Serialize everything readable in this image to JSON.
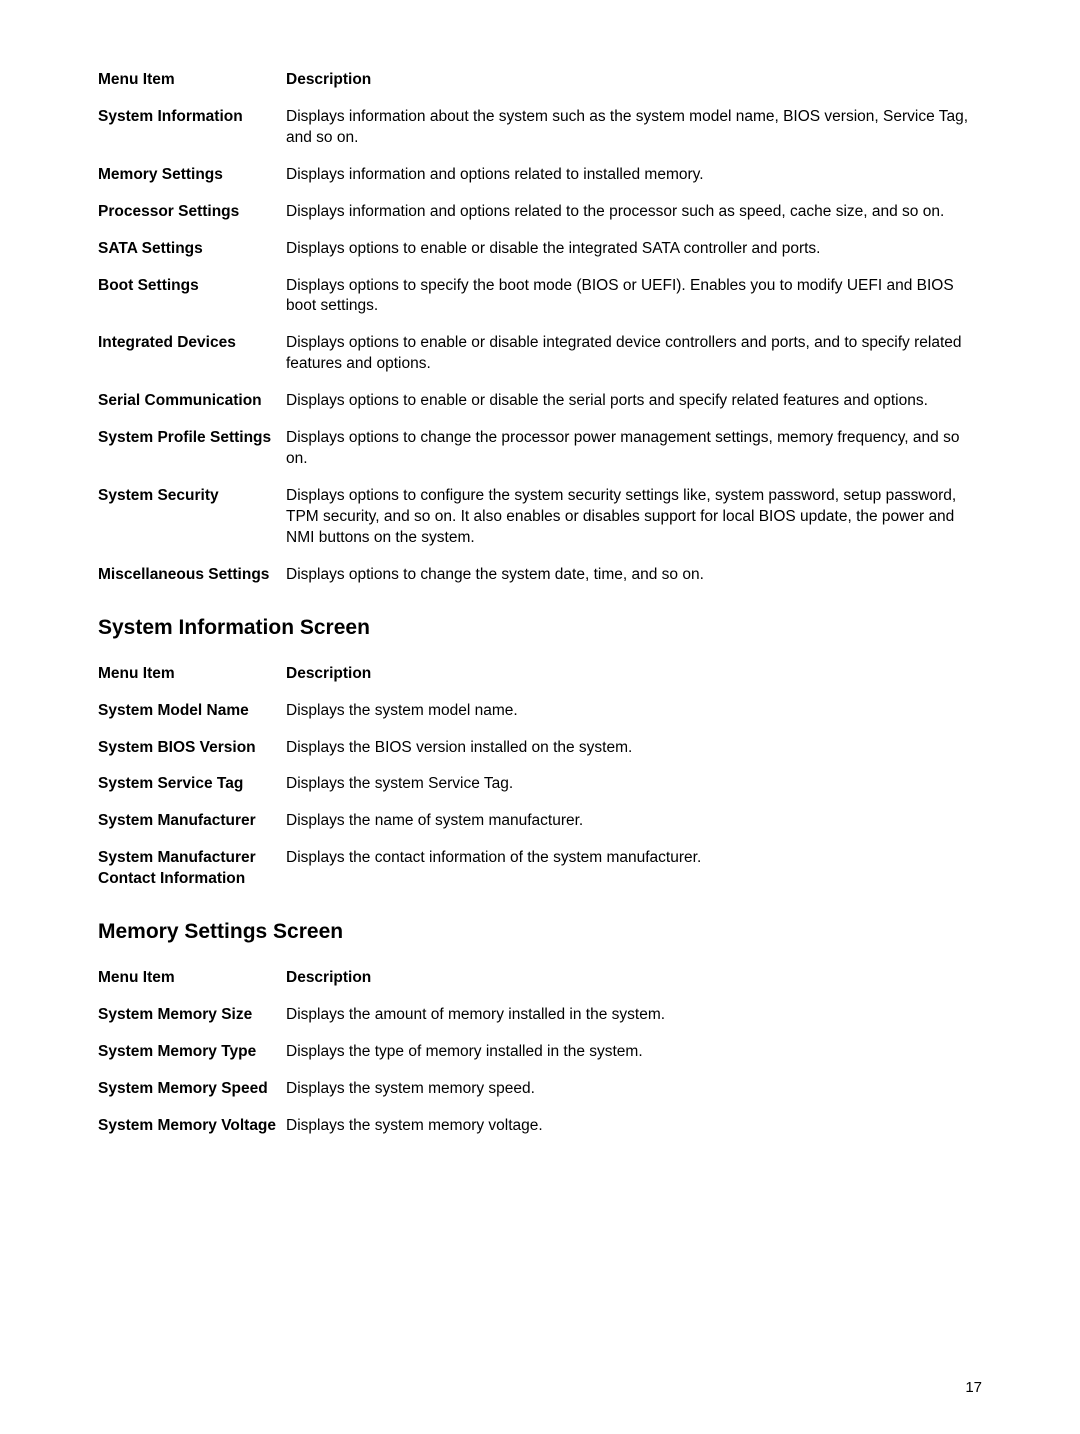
{
  "table1": {
    "header": {
      "term": "Menu Item",
      "desc": "Description"
    },
    "rows": [
      {
        "term": "System Information",
        "desc": "Displays information about the system such as the system model name, BIOS version, Service Tag, and so on."
      },
      {
        "term": "Memory Settings",
        "desc": "Displays information and options related to installed memory."
      },
      {
        "term": "Processor Settings",
        "desc": "Displays information and options related to the processor such as speed, cache size, and so on."
      },
      {
        "term": "SATA Settings",
        "desc": "Displays options to enable or disable the integrated SATA controller and ports."
      },
      {
        "term": "Boot Settings",
        "desc": "Displays options to specify the boot mode (BIOS or UEFI). Enables you to modify UEFI and BIOS boot settings."
      },
      {
        "term": "Integrated Devices",
        "desc": "Displays options to enable or disable integrated device controllers and ports, and to specify related features and options."
      },
      {
        "term": "Serial Communication",
        "desc": "Displays options to enable or disable the serial ports and specify related features and options."
      },
      {
        "term": "System Profile Settings",
        "desc": "Displays options to change the processor power management settings, memory frequency, and so on."
      },
      {
        "term": "System Security",
        "desc": "Displays options to configure the system security settings like, system password, setup password, TPM security, and so on. It also enables or disables support for local BIOS update, the power and NMI buttons on the system."
      },
      {
        "term": "Miscellaneous Settings",
        "desc": "Displays options to change the system date, time, and so on."
      }
    ]
  },
  "section2_heading": "System Information Screen",
  "table2": {
    "header": {
      "term": "Menu Item",
      "desc": "Description"
    },
    "rows": [
      {
        "term": "System Model Name",
        "desc": "Displays the system model name."
      },
      {
        "term": "System BIOS Version",
        "desc": "Displays the BIOS version installed on the system."
      },
      {
        "term": "System Service Tag",
        "desc": "Displays the system Service Tag."
      },
      {
        "term": "System Manufacturer",
        "desc": "Displays the name of system manufacturer."
      },
      {
        "term": "System Manufacturer Contact Information",
        "desc": "Displays the contact information of the system manufacturer."
      }
    ]
  },
  "section3_heading": "Memory Settings Screen",
  "table3": {
    "header": {
      "term": "Menu Item",
      "desc": "Description"
    },
    "rows": [
      {
        "term": "System Memory Size",
        "desc": "Displays the amount of memory installed in the system."
      },
      {
        "term": "System Memory Type",
        "desc": "Displays the type of memory installed in the system."
      },
      {
        "term": "System Memory Speed",
        "desc": "Displays the system memory speed."
      },
      {
        "term": "System Memory Voltage",
        "desc": "Displays the system memory voltage."
      }
    ]
  },
  "page_number": "17"
}
